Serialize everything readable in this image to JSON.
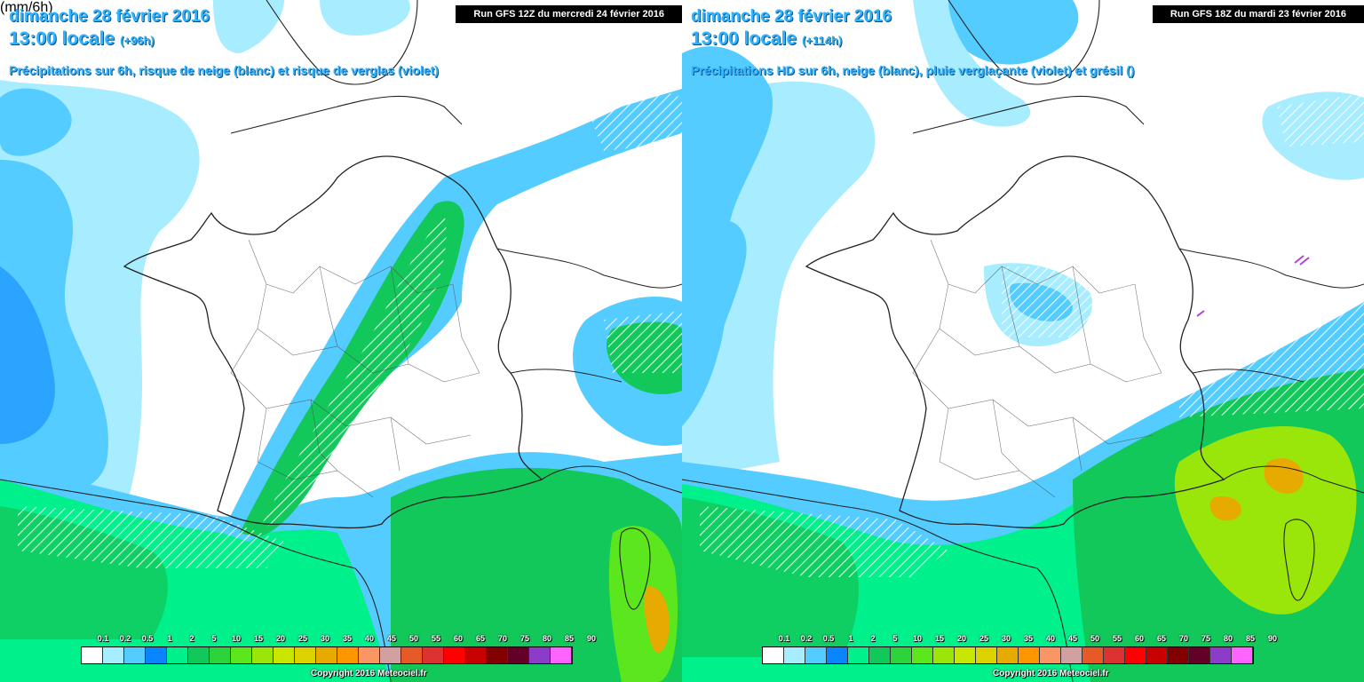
{
  "palette": [
    "#ffffff",
    "#a8ecff",
    "#54ccff",
    "#0a84ff",
    "#00f08c",
    "#12c85a",
    "#2dd33c",
    "#5ce61e",
    "#9be60a",
    "#c8e600",
    "#dcd200",
    "#e6aa00",
    "#ff9600",
    "#fa9664",
    "#d2a0a0",
    "#e65a28",
    "#dc3232",
    "#ff0000",
    "#c80000",
    "#820000",
    "#640028",
    "#8c3cc8",
    "#ff64ff"
  ],
  "legend_values": [
    "0.1",
    "0.2",
    "0.5",
    "1",
    "2",
    "5",
    "10",
    "15",
    "20",
    "25",
    "30",
    "35",
    "40",
    "45",
    "50",
    "55",
    "60",
    "65",
    "70",
    "75",
    "80",
    "85",
    "90"
  ],
  "left": {
    "title_date": "dimanche 28 février 2016",
    "title_time": "13:00 locale",
    "title_lead": "(+96h)",
    "subtitle": "Précipitations sur 6h, risque de neige (blanc) et risque de verglas (violet)",
    "run": "Run GFS 12Z du mercredi 24 février 2016",
    "unit": "(mm/6h)",
    "copyright": "Copyright 2016 Meteociel.fr"
  },
  "right": {
    "title_date": "dimanche 28 février 2016",
    "title_time": "13:00 locale",
    "title_lead": "(+114h)",
    "subtitle": "Précipitations HD sur 6h, neige (blanc), pluie verglaçante (violet) et grésil ()",
    "run": "Run GFS 18Z du mardi 23 février 2016",
    "copyright": "Copyright 2016 Meteociel.fr"
  }
}
